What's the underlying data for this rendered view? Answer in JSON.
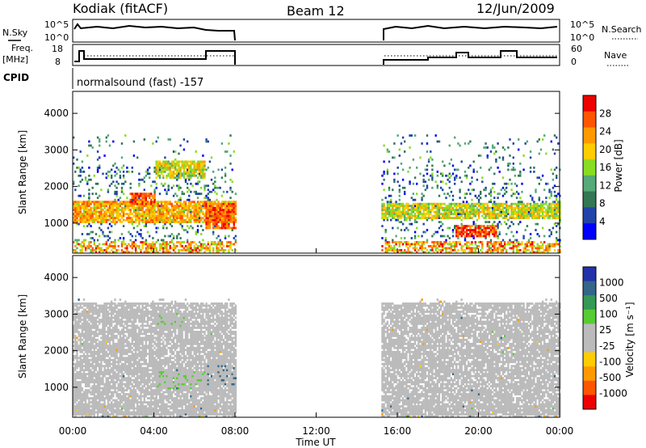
{
  "header": {
    "station": "Kodiak (fitACF)",
    "beam": "Beam 12",
    "date": "12/Jun/2009"
  },
  "status_panels": {
    "nsky_label": "N.Sky",
    "nsky_ticks": [
      "10^5",
      "10^0"
    ],
    "nsearch_label": "N.Search",
    "nsearch_ticks": [
      "10^5",
      "10^0"
    ],
    "freq_label_line1": "Freq.",
    "freq_label_line2": "[MHz]",
    "freq_ticks": [
      "18",
      "8"
    ],
    "nave_label": "Nave",
    "nave_ticks": [
      "60",
      "0"
    ],
    "cpid_label": "CPID",
    "cpid_value": "normalsound (fast) -157"
  },
  "power_panel": {
    "ylabel": "Slant Range [km]",
    "yticks": [
      "4000",
      "3000",
      "2000",
      "1000"
    ],
    "colorbar_label": "Power [dB]",
    "colorbar_ticks": [
      "28",
      "24",
      "20",
      "16",
      "12",
      "8",
      "4"
    ],
    "colorbar_colors": [
      "#ee0000",
      "#ff5500",
      "#ff9900",
      "#ffcc00",
      "#88dd22",
      "#55aa77",
      "#337755",
      "#2244aa",
      "#0000ff"
    ]
  },
  "velocity_panel": {
    "ylabel": "Slant Range [km]",
    "yticks": [
      "4000",
      "3000",
      "2000",
      "1000"
    ],
    "colorbar_label": "Velocity [m s⁻¹]",
    "colorbar_ticks": [
      "1000",
      "500",
      "100",
      "25",
      "-25",
      "-100",
      "-500",
      "-1000"
    ],
    "colorbar_colors": [
      "#2233aa",
      "#336688",
      "#339955",
      "#55cc33",
      "#bbbbbb",
      "#bbbbbb",
      "#ffcc00",
      "#ff9900",
      "#ff5500",
      "#ee0000"
    ]
  },
  "x_axis": {
    "label": "Time UT",
    "ticks": [
      "00:00",
      "04:00",
      "08:00",
      "12:00",
      "16:00",
      "20:00",
      "00:00"
    ]
  },
  "chart_data": [
    {
      "type": "heatmap",
      "title": "Power",
      "xlabel": "Time UT",
      "ylabel": "Slant Range [km]",
      "x_range_hours": [
        0,
        24
      ],
      "ylim": [
        180,
        4600
      ],
      "data_gap_hours": [
        8.0,
        15.2
      ],
      "colorbar": {
        "label": "Power [dB]",
        "range": [
          0,
          32
        ]
      },
      "features": [
        {
          "t_start": 0.0,
          "t_end": 8.0,
          "range_km": [
            1000,
            1600
          ],
          "level_db": 22
        },
        {
          "t_start": 2.8,
          "t_end": 4.0,
          "range_km": [
            1500,
            1800
          ],
          "level_db": 26
        },
        {
          "t_start": 6.5,
          "t_end": 8.0,
          "range_km": [
            800,
            1500
          ],
          "level_db": 26
        },
        {
          "t_start": 4.0,
          "t_end": 6.5,
          "range_km": [
            2200,
            2700
          ],
          "level_db": 18
        },
        {
          "t_start": 18.8,
          "t_end": 20.9,
          "range_km": [
            600,
            900
          ],
          "level_db": 28
        },
        {
          "t_start": 15.2,
          "t_end": 24.0,
          "range_km": [
            1100,
            1500
          ],
          "level_db": 18
        }
      ]
    },
    {
      "type": "heatmap",
      "title": "Velocity",
      "xlabel": "Time UT",
      "ylabel": "Slant Range [km]",
      "x_range_hours": [
        0,
        24
      ],
      "ylim": [
        180,
        4600
      ],
      "data_gap_hours": [
        8.0,
        15.2
      ],
      "colorbar": {
        "label": "Velocity [m s⁻¹]",
        "range": [
          -1000,
          1000
        ]
      },
      "features": [
        {
          "t_start": 4.0,
          "t_end": 6.5,
          "range_km": [
            900,
            1400
          ],
          "velocity": 100
        },
        {
          "t_start": 6.5,
          "t_end": 8.0,
          "range_km": [
            1000,
            1600
          ],
          "velocity": 300
        },
        {
          "t_start": 4.0,
          "t_end": 5.5,
          "range_km": [
            2600,
            3000
          ],
          "velocity": 100
        },
        {
          "t_start": 0.0,
          "t_end": 24.0,
          "range_km": [
            200,
            3300
          ],
          "velocity": 0
        }
      ]
    }
  ]
}
